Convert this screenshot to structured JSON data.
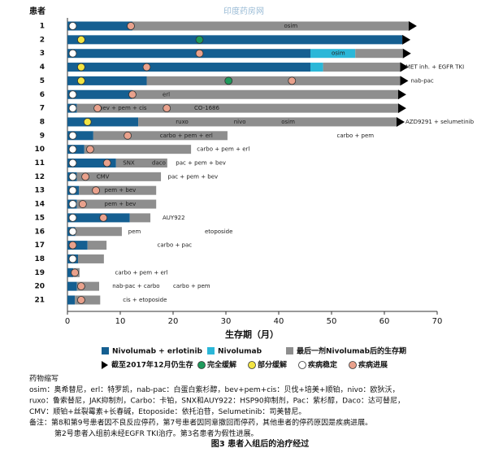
{
  "chart_data": {
    "type": "swimmer",
    "watermark": "印度药房网",
    "y_header": "患者",
    "x_label": "生存期（月）",
    "xlim": [
      0,
      70
    ],
    "xticks": [
      0,
      10,
      20,
      30,
      40,
      50,
      60,
      70
    ],
    "categories": [
      "1",
      "2",
      "3",
      "4",
      "5",
      "6",
      "7",
      "8",
      "9",
      "10",
      "11",
      "12",
      "13",
      "14",
      "15",
      "16",
      "17",
      "18",
      "19",
      "20",
      "21"
    ],
    "series": [
      {
        "name": "Nivolumab + erlotinib",
        "color": "#155f91",
        "values": [
          12.3,
          63.4,
          46,
          46,
          15,
          12.3,
          1.8,
          13.4,
          4.9,
          3.2,
          9.2,
          1.8,
          2.2,
          1.8,
          11.8,
          1.5,
          3.8,
          2,
          1.1,
          1.8,
          1.4
        ]
      },
      {
        "name": "Nivolumab",
        "color": "#2bb7d8",
        "values": [
          null,
          null,
          8.5,
          2.4,
          null,
          null,
          null,
          null,
          null,
          null,
          null,
          null,
          null,
          null,
          null,
          null,
          null,
          null,
          null,
          null,
          null
        ]
      },
      {
        "name": "最后一剂Nivolumab后的生存期",
        "color": "#8e8e8e",
        "values": [
          52.3,
          null,
          9,
          14.6,
          48,
          50.3,
          60.8,
          48.9,
          25.4,
          20.2,
          9.7,
          15.9,
          14.6,
          15,
          3.9,
          8.8,
          3.6,
          4.9,
          1.2,
          4.2,
          4.8
        ]
      }
    ],
    "ongoing_label": "截至2017年12月仍生存",
    "ongoing": [
      true,
      true,
      true,
      true,
      true,
      true,
      true,
      true,
      false,
      false,
      false,
      false,
      false,
      false,
      false,
      false,
      false,
      false,
      false,
      false,
      false
    ],
    "responses": [
      {
        "name": "完全缓解",
        "color": "#1e9a5c"
      },
      {
        "name": "部分缓解",
        "color": "#f2e443"
      },
      {
        "name": "疾病稳定",
        "color": "#ffffff"
      },
      {
        "name": "疾病进展",
        "color": "#e9a18c"
      }
    ],
    "events": [
      {
        "category": "1",
        "x": 1,
        "response": "疾病稳定"
      },
      {
        "category": "1",
        "x": 12,
        "response": "疾病进展"
      },
      {
        "category": "2",
        "x": 2.6,
        "response": "部分缓解"
      },
      {
        "category": "2",
        "x": 25,
        "response": "完全缓解"
      },
      {
        "category": "3",
        "x": 1,
        "response": "疾病稳定"
      },
      {
        "category": "3",
        "x": 25,
        "response": "疾病进展"
      },
      {
        "category": "4",
        "x": 2.6,
        "response": "部分缓解"
      },
      {
        "category": "4",
        "x": 15,
        "response": "疾病进展"
      },
      {
        "category": "5",
        "x": 2.6,
        "response": "部分缓解"
      },
      {
        "category": "5",
        "x": 30.5,
        "response": "完全缓解"
      },
      {
        "category": "5",
        "x": 42.5,
        "response": "疾病进展"
      },
      {
        "category": "6",
        "x": 1,
        "response": "疾病稳定"
      },
      {
        "category": "6",
        "x": 12.3,
        "response": "疾病进展"
      },
      {
        "category": "7",
        "x": 1,
        "response": "疾病稳定"
      },
      {
        "category": "7",
        "x": 5.7,
        "response": "疾病进展"
      },
      {
        "category": "7",
        "x": 18.8,
        "response": "疾病进展"
      },
      {
        "category": "8",
        "x": 3.8,
        "response": "部分缓解"
      },
      {
        "category": "9",
        "x": 1,
        "response": "疾病稳定"
      },
      {
        "category": "9",
        "x": 11.4,
        "response": "疾病进展"
      },
      {
        "category": "10",
        "x": 1,
        "response": "疾病稳定"
      },
      {
        "category": "10",
        "x": 4.3,
        "response": "疾病进展"
      },
      {
        "category": "11",
        "x": 1,
        "response": "疾病稳定"
      },
      {
        "category": "11",
        "x": 7.5,
        "response": "疾病进展"
      },
      {
        "category": "12",
        "x": 1,
        "response": "疾病稳定"
      },
      {
        "category": "12",
        "x": 3.4,
        "response": "疾病进展"
      },
      {
        "category": "13",
        "x": 1,
        "response": "疾病稳定"
      },
      {
        "category": "13",
        "x": 5.4,
        "response": "疾病进展"
      },
      {
        "category": "14",
        "x": 1,
        "response": "疾病稳定"
      },
      {
        "category": "14",
        "x": 2.9,
        "response": "疾病进展"
      },
      {
        "category": "15",
        "x": 1,
        "response": "疾病稳定"
      },
      {
        "category": "15",
        "x": 6.8,
        "response": "疾病进展"
      },
      {
        "category": "16",
        "x": 1,
        "response": "疾病稳定"
      },
      {
        "category": "17",
        "x": 1,
        "response": "疾病进展"
      },
      {
        "category": "18",
        "x": 1,
        "response": "疾病稳定"
      },
      {
        "category": "19",
        "x": 1.4,
        "response": "疾病进展"
      },
      {
        "category": "20",
        "x": 2.6,
        "response": "疾病进展"
      },
      {
        "category": "21",
        "x": 2.6,
        "response": "疾病进展"
      }
    ],
    "annotations": [
      {
        "text": "osim",
        "category": "1",
        "x": 41
      },
      {
        "text": "osim",
        "category": "3",
        "x": 50
      },
      {
        "text": "MET inh. + EGFR TKI",
        "category": "4",
        "x": 64
      },
      {
        "text": "nab-pac",
        "category": "5",
        "x": 65
      },
      {
        "text": "erl",
        "category": "6",
        "x": 18
      },
      {
        "text": "bev + pem + cis",
        "category": "7",
        "x": 6
      },
      {
        "text": "CO-1686",
        "category": "7",
        "x": 24
      },
      {
        "text": "ruxo",
        "category": "8",
        "x": 20.5
      },
      {
        "text": "nivo",
        "category": "8",
        "x": 31.5
      },
      {
        "text": "osim",
        "category": "8",
        "x": 40.5
      },
      {
        "text": "AZD9291 + selumetinib",
        "category": "8",
        "x": 64
      },
      {
        "text": "carbo + pem",
        "category": "9",
        "x": 51
      },
      {
        "text": "carbo + pem + erl",
        "category": "9",
        "x": 17.5
      },
      {
        "text": "carbo + pem + erl",
        "category": "10",
        "x": 24.5
      },
      {
        "text": "daco",
        "category": "11",
        "x": 16
      },
      {
        "text": "SNX",
        "category": "11",
        "x": 10.5
      },
      {
        "text": "pac + pem + bev",
        "category": "11",
        "x": 20.5
      },
      {
        "text": "CMV",
        "category": "12",
        "x": 5.5
      },
      {
        "text": "pac + pem + bev",
        "category": "12",
        "x": 19
      },
      {
        "text": "pem + bev",
        "category": "13",
        "x": 7
      },
      {
        "text": "pem + bev",
        "category": "14",
        "x": 7
      },
      {
        "text": "AUY922",
        "category": "15",
        "x": 18
      },
      {
        "text": "etoposide",
        "category": "16",
        "x": 26
      },
      {
        "text": "pem",
        "category": "16",
        "x": 11.5
      },
      {
        "text": "carbo + pac",
        "category": "17",
        "x": 17
      },
      {
        "text": "carbo + pem + erl",
        "category": "19",
        "x": 9
      },
      {
        "text": "nab-pac + carbo",
        "category": "20",
        "x": 8.5
      },
      {
        "text": "carbo + pem",
        "category": "20",
        "x": 20
      },
      {
        "text": "cis + etoposide",
        "category": "21",
        "x": 10.5
      }
    ],
    "footnotes": [
      "药物缩写",
      "osim：奥希替尼，erl：特罗凯，nab-pac：白蛋白紫杉醇，bev+pem+cis：贝伐+培美+顺铂，nivo：欧狄沃，",
      "ruxo：鲁索替尼，JAK抑制剂，Carbo：卡铂，SNX和AUY922：HSP90抑制剂，Pac：紫杉醇，Daco：达可替尼，",
      "CMV：顺铂+丝裂霉素+长春碱，Etoposide：依托泊苷，Selumetinib：司美替尼。",
      "备注：第8和第9号患者因不良反应停药，第7号患者因同意撤回而停药，其他患者的停药原因是疾病进展。",
      "第2号患者入组前未经EGFR TKI治疗。第3名患者为假性进展。"
    ],
    "caption": "图3 患者入组后的治疗经过"
  }
}
